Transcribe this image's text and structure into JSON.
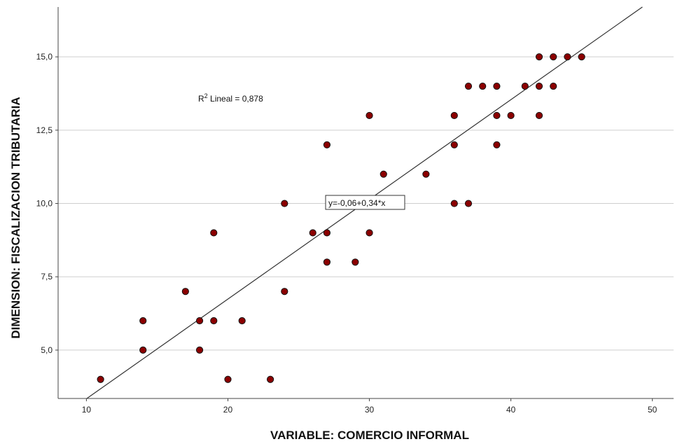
{
  "chart_data": {
    "type": "scatter",
    "title": "",
    "xlabel": "VARIABLE: COMERCIO INFORMAL",
    "ylabel": "DIMENSION: FISCALIZACION TRIBUTARIA",
    "xlim": [
      8,
      51.5
    ],
    "ylim": [
      3.35,
      16.7
    ],
    "x_ticks": [
      10,
      20,
      30,
      40,
      50
    ],
    "x_tick_labels": [
      "10",
      "20",
      "30",
      "40",
      "50"
    ],
    "y_ticks": [
      5,
      7.5,
      10,
      12.5,
      15
    ],
    "y_tick_labels": [
      "5,0",
      "7,5",
      "10,0",
      "12,5",
      "15,0"
    ],
    "grid": "horizontal",
    "legend": "none",
    "marker_color": "#8b0000",
    "line_color": "#333333",
    "points": [
      [
        11,
        4
      ],
      [
        14,
        6
      ],
      [
        14,
        5
      ],
      [
        17,
        7
      ],
      [
        18,
        6
      ],
      [
        18,
        5
      ],
      [
        19,
        9
      ],
      [
        19,
        6
      ],
      [
        20,
        4
      ],
      [
        21,
        6
      ],
      [
        23,
        4
      ],
      [
        24,
        10
      ],
      [
        24,
        7
      ],
      [
        26,
        9
      ],
      [
        27,
        12
      ],
      [
        27,
        9
      ],
      [
        27,
        8
      ],
      [
        29,
        8
      ],
      [
        30,
        13
      ],
      [
        30,
        9
      ],
      [
        31,
        11
      ],
      [
        34,
        11
      ],
      [
        36,
        13
      ],
      [
        36,
        12
      ],
      [
        36,
        10
      ],
      [
        37,
        14
      ],
      [
        37,
        10
      ],
      [
        38,
        14
      ],
      [
        39,
        14
      ],
      [
        39,
        13
      ],
      [
        39,
        12
      ],
      [
        40,
        13
      ],
      [
        41,
        14
      ],
      [
        42,
        15
      ],
      [
        42,
        14
      ],
      [
        42,
        13
      ],
      [
        43,
        15
      ],
      [
        43,
        14
      ],
      [
        44,
        15
      ],
      [
        45,
        15
      ]
    ],
    "fit_line": {
      "intercept": -0.06,
      "slope": 0.34,
      "equation_label": "y=-0,06+0,34*x",
      "r2_label_prefix": "R",
      "r2_label_superscript": "2",
      "r2_label_suffix": " Lineal = 0,878"
    }
  }
}
